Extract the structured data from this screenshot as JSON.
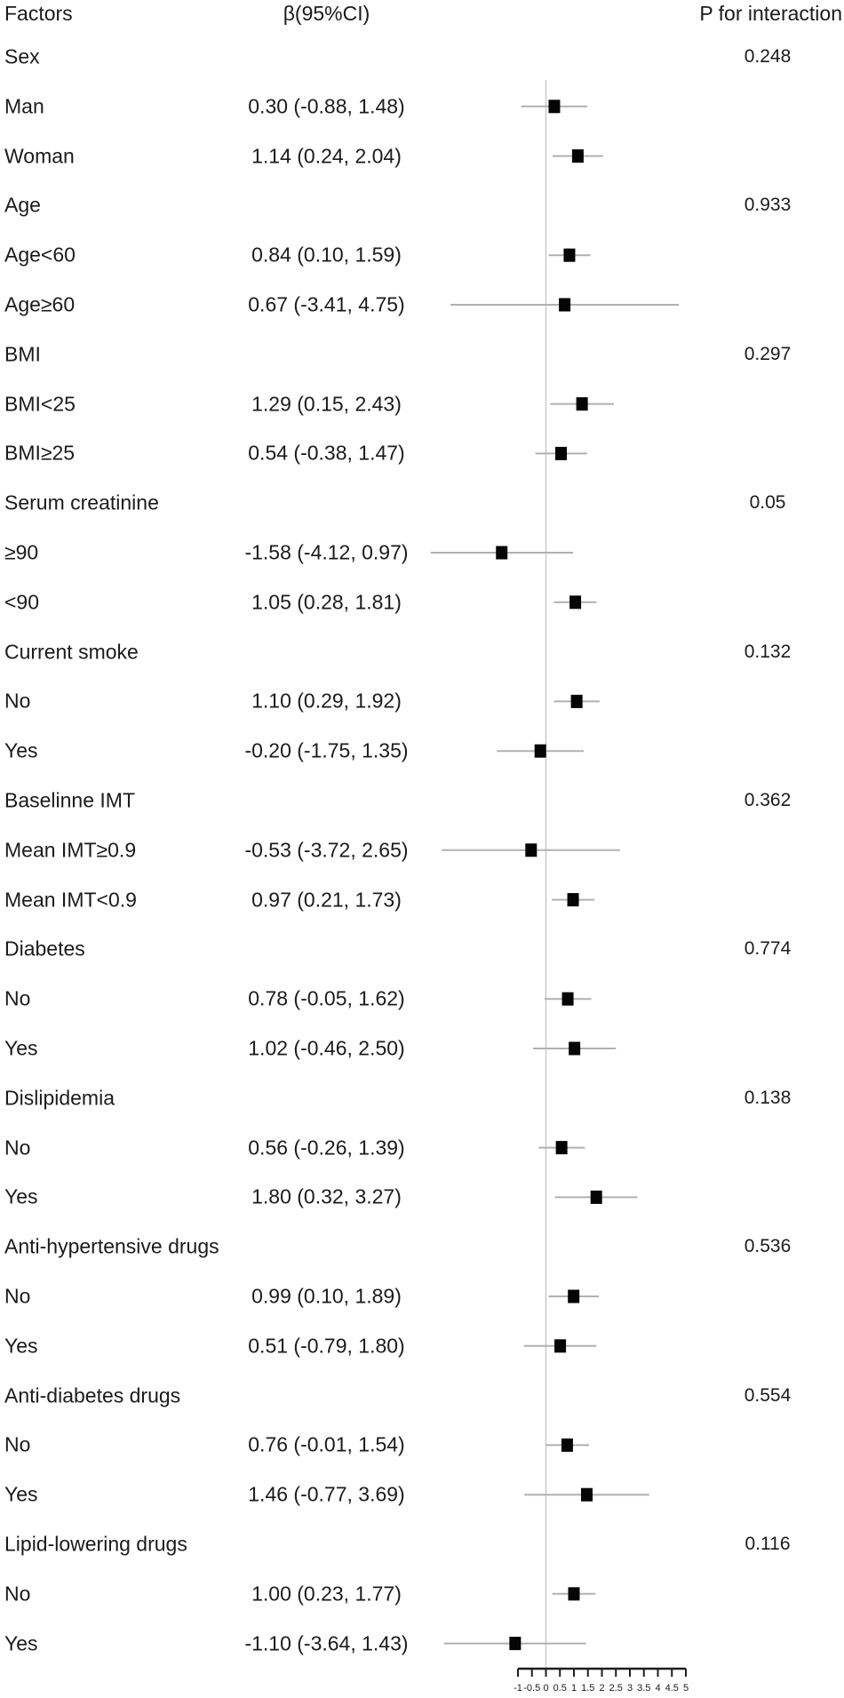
{
  "header": {
    "factors": "Factors",
    "beta_ci": "β(95%CI)",
    "p_interaction": "P for interaction"
  },
  "colors": {
    "text": "#1b1b1b",
    "marker": "#050505",
    "ci_line": "#b0b0b0",
    "ref_line": "#c7c7c7",
    "axis": "#1e1e1e"
  },
  "chart_data": {
    "type": "forest",
    "x_axis": {
      "min": -1,
      "max": 5,
      "tick_step": 0.5,
      "tick_labels": [
        "-1",
        "-0.5",
        "0",
        "0.5",
        "1",
        "1.5",
        "2",
        "2.5",
        "3",
        "3.5",
        "4",
        "4.5",
        "5"
      ],
      "reference_line": 0
    },
    "groups": [
      {
        "label": "Sex",
        "p_interaction": "0.248",
        "items": [
          {
            "label": "Man",
            "text": "0.30 (-0.88, 1.48)",
            "est": 0.3,
            "lo": -0.88,
            "hi": 1.48
          },
          {
            "label": "Woman",
            "text": "1.14 (0.24, 2.04)",
            "est": 1.14,
            "lo": 0.24,
            "hi": 2.04
          }
        ]
      },
      {
        "label": "Age",
        "p_interaction": "0.933",
        "items": [
          {
            "label": "Age<60",
            "text": "0.84 (0.10, 1.59)",
            "est": 0.84,
            "lo": 0.1,
            "hi": 1.59
          },
          {
            "label": "Age≥60",
            "text": "0.67 (-3.41, 4.75)",
            "est": 0.67,
            "lo": -3.41,
            "hi": 4.75
          }
        ]
      },
      {
        "label": "BMI",
        "p_interaction": "0.297",
        "items": [
          {
            "label": "BMI<25",
            "text": "1.29 (0.15, 2.43)",
            "est": 1.29,
            "lo": 0.15,
            "hi": 2.43
          },
          {
            "label": "BMI≥25",
            "text": "0.54 (-0.38, 1.47)",
            "est": 0.54,
            "lo": -0.38,
            "hi": 1.47
          }
        ]
      },
      {
        "label": "Serum creatinine",
        "p_interaction": "0.05",
        "items": [
          {
            "label": "≥90",
            "text": "-1.58 (-4.12, 0.97)",
            "est": -1.58,
            "lo": -4.12,
            "hi": 0.97
          },
          {
            "label": "<90",
            "text": "1.05 (0.28, 1.81)",
            "est": 1.05,
            "lo": 0.28,
            "hi": 1.81
          }
        ]
      },
      {
        "label": "Current smoke",
        "p_interaction": "0.132",
        "items": [
          {
            "label": "No",
            "text": "1.10 (0.29, 1.92)",
            "est": 1.1,
            "lo": 0.29,
            "hi": 1.92
          },
          {
            "label": "Yes",
            "text": "-0.20 (-1.75, 1.35)",
            "est": -0.2,
            "lo": -1.75,
            "hi": 1.35
          }
        ]
      },
      {
        "label": "Baselinne IMT",
        "p_interaction": "0.362",
        "items": [
          {
            "label": "Mean IMT≥0.9",
            "text": "-0.53 (-3.72, 2.65)",
            "est": -0.53,
            "lo": -3.72,
            "hi": 2.65
          },
          {
            "label": "Mean IMT<0.9",
            "text": "0.97 (0.21, 1.73)",
            "est": 0.97,
            "lo": 0.21,
            "hi": 1.73
          }
        ]
      },
      {
        "label": "Diabetes",
        "p_interaction": "0.774",
        "items": [
          {
            "label": "No",
            "text": "0.78 (-0.05, 1.62)",
            "est": 0.78,
            "lo": -0.05,
            "hi": 1.62
          },
          {
            "label": "Yes",
            "text": "1.02 (-0.46, 2.50)",
            "est": 1.02,
            "lo": -0.46,
            "hi": 2.5
          }
        ]
      },
      {
        "label": "Dislipidemia",
        "p_interaction": "0.138",
        "items": [
          {
            "label": "No",
            "text": "0.56 (-0.26, 1.39)",
            "est": 0.56,
            "lo": -0.26,
            "hi": 1.39
          },
          {
            "label": "Yes",
            "text": "1.80 (0.32, 3.27)",
            "est": 1.8,
            "lo": 0.32,
            "hi": 3.27
          }
        ]
      },
      {
        "label": "Anti-hypertensive drugs",
        "p_interaction": "0.536",
        "items": [
          {
            "label": "No",
            "text": "0.99 (0.10, 1.89)",
            "est": 0.99,
            "lo": 0.1,
            "hi": 1.89
          },
          {
            "label": "Yes",
            "text": "0.51 (-0.79, 1.80)",
            "est": 0.51,
            "lo": -0.79,
            "hi": 1.8
          }
        ]
      },
      {
        "label": "Anti-diabetes drugs",
        "p_interaction": "0.554",
        "items": [
          {
            "label": "No",
            "text": "0.76 (-0.01, 1.54)",
            "est": 0.76,
            "lo": -0.01,
            "hi": 1.54
          },
          {
            "label": "Yes",
            "text": "1.46 (-0.77, 3.69)",
            "est": 1.46,
            "lo": -0.77,
            "hi": 3.69
          }
        ]
      },
      {
        "label": "Lipid-lowering drugs",
        "p_interaction": "0.116",
        "items": [
          {
            "label": "No",
            "text": "1.00 (0.23, 1.77)",
            "est": 1.0,
            "lo": 0.23,
            "hi": 1.77
          },
          {
            "label": "Yes",
            "text": "-1.10 (-3.64, 1.43)",
            "est": -1.1,
            "lo": -3.64,
            "hi": 1.43
          }
        ]
      }
    ]
  }
}
